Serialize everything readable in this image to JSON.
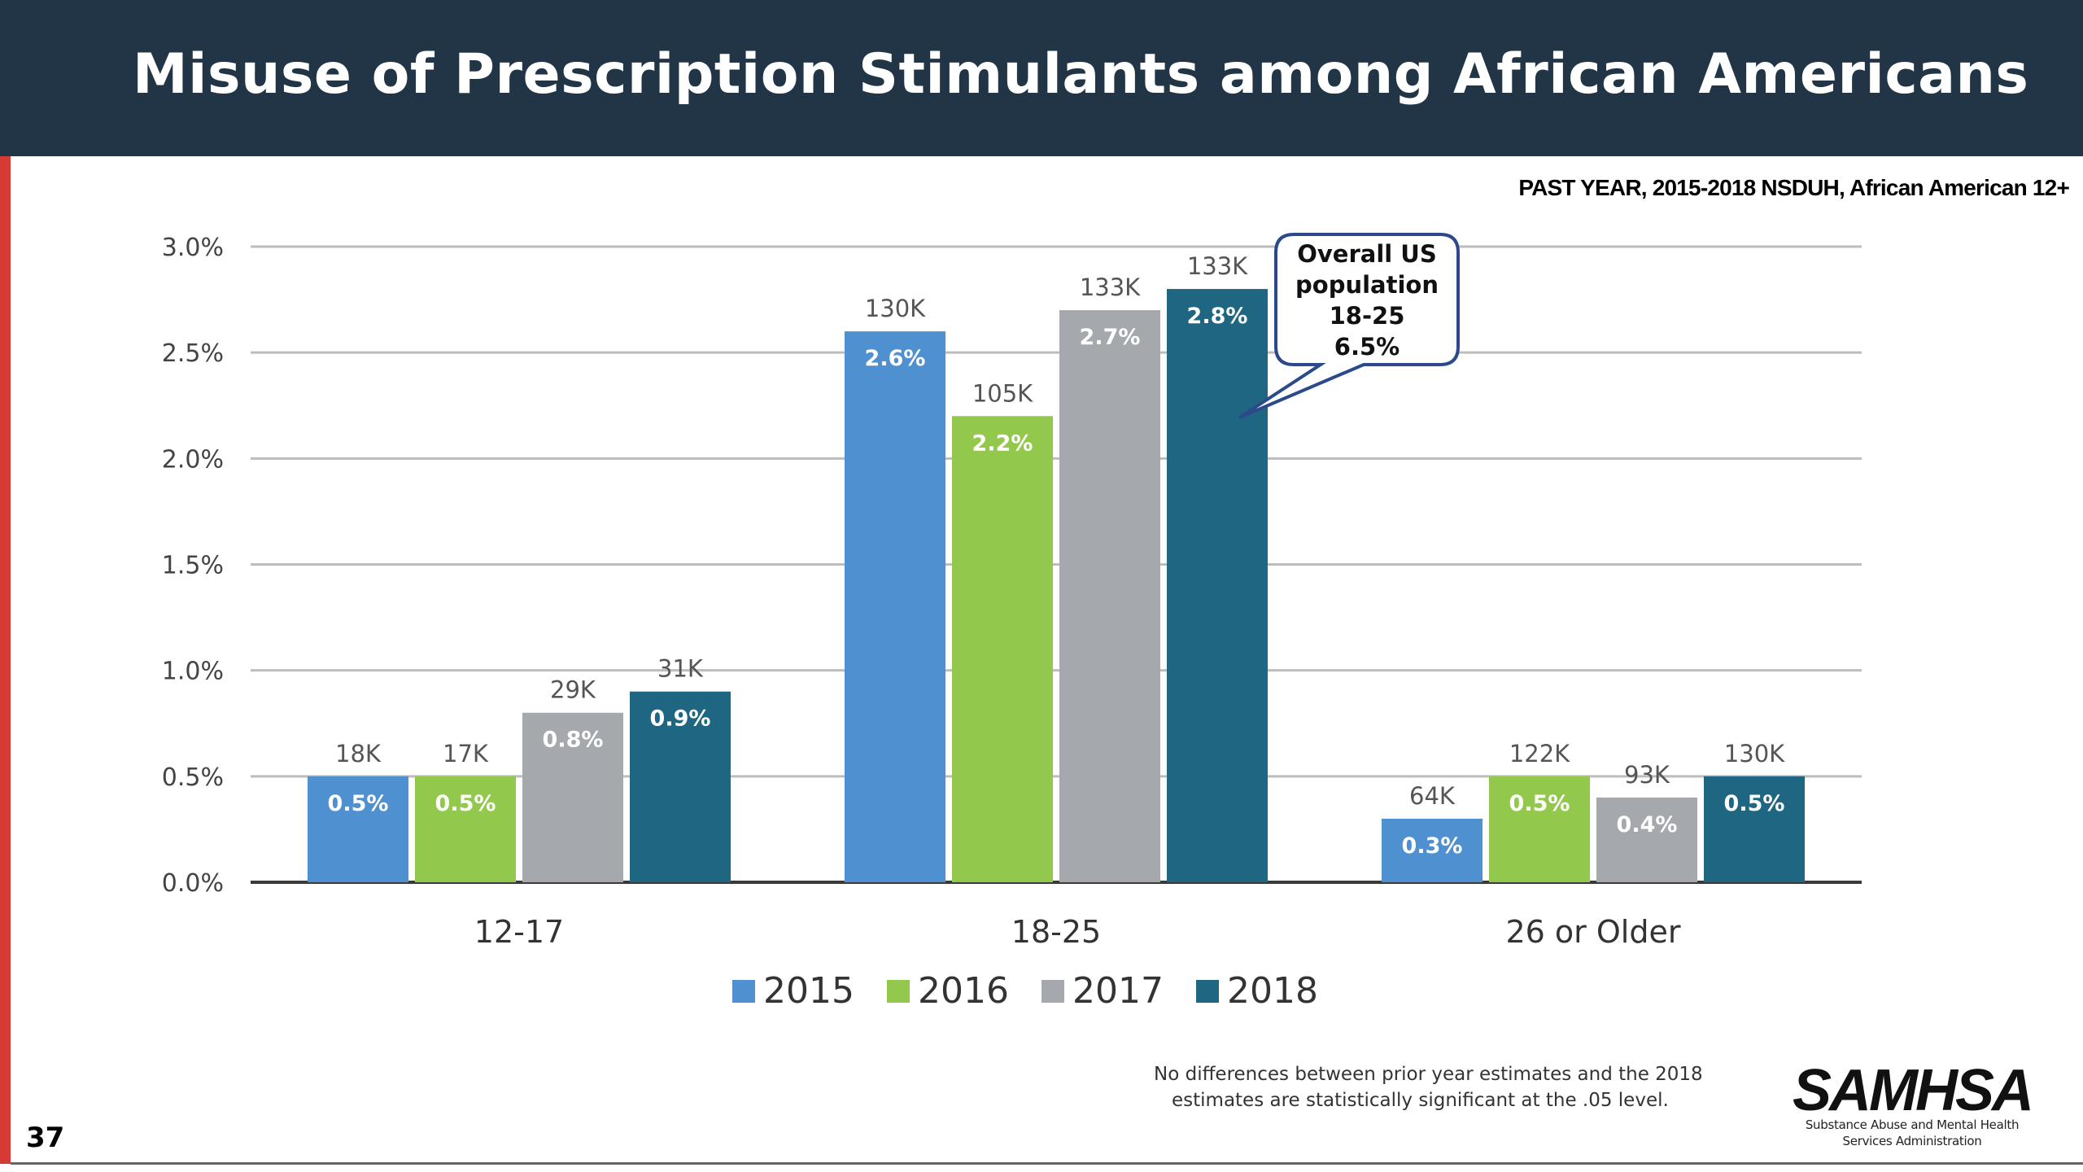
{
  "header": {
    "title": "Misuse of Prescription Stimulants among African Americans",
    "subtitle": "PAST YEAR, 2015-2018 NSDUH, African American 12+"
  },
  "chart_data": {
    "type": "bar",
    "categories": [
      "12-17",
      "18-25",
      "26 or Older"
    ],
    "series": [
      {
        "name": "2015",
        "color": "#4f90d0",
        "values": [
          0.5,
          2.6,
          0.3
        ],
        "value_labels": [
          "0.5%",
          "2.6%",
          "0.3%"
        ],
        "count_labels": [
          "18K",
          "130K",
          "64K"
        ]
      },
      {
        "name": "2016",
        "color": "#92c84b",
        "values": [
          0.5,
          2.2,
          0.5
        ],
        "value_labels": [
          "0.5%",
          "2.2%",
          "0.5%"
        ],
        "count_labels": [
          "17K",
          "105K",
          "122K"
        ]
      },
      {
        "name": "2017",
        "color": "#a5a8ac",
        "values": [
          0.8,
          2.7,
          0.4
        ],
        "value_labels": [
          "0.8%",
          "2.7%",
          "0.4%"
        ],
        "count_labels": [
          "29K",
          "133K",
          "93K"
        ]
      },
      {
        "name": "2018",
        "color": "#1f6682",
        "values": [
          0.9,
          2.8,
          0.5
        ],
        "value_labels": [
          "0.9%",
          "2.8%",
          "0.5%"
        ],
        "count_labels": [
          "31K",
          "133K",
          "130K"
        ]
      }
    ],
    "ylim": [
      0,
      3.0
    ],
    "yticks": [
      "0.0%",
      "0.5%",
      "1.0%",
      "1.5%",
      "2.0%",
      "2.5%",
      "3.0%"
    ],
    "grid": true,
    "legend_position": "bottom",
    "annotation": {
      "lines": [
        "Overall US",
        "population",
        "18-25",
        "6.5%"
      ],
      "points_to": {
        "category": "18-25",
        "series": "2018"
      }
    }
  },
  "footnote": {
    "lines": [
      "No differences between prior year estimates and the 2018",
      "estimates are statistically significant at the .05 level."
    ]
  },
  "page_number": "37",
  "logo": {
    "name": "SAMHSA",
    "tagline_lines": [
      "Substance Abuse and Mental Health",
      "Services Administration"
    ]
  }
}
